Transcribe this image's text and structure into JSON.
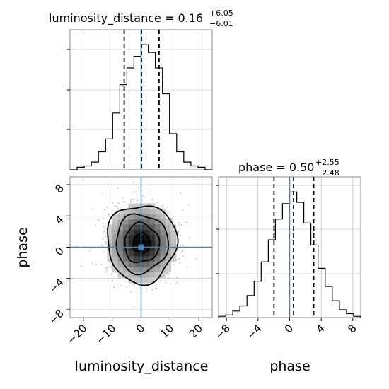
{
  "titles": {
    "luminosity_distance": {
      "name": "luminosity_distance",
      "median": "0.16",
      "plus": "+6.05",
      "minus": "−6.01"
    },
    "phase": {
      "name": "phase",
      "median": "0.50",
      "plus": "+2.55",
      "minus": "−2.48"
    }
  },
  "axes": {
    "x_bottom_left": {
      "label": "luminosity_distance",
      "ticks": [
        "−20",
        "−10",
        "0",
        "10",
        "20"
      ]
    },
    "x_bottom_right": {
      "label": "phase",
      "ticks": [
        "−8",
        "−4",
        "0",
        "4",
        "8"
      ]
    },
    "y_left": {
      "label": "phase",
      "ticks": [
        "−8",
        "−4",
        "0",
        "4",
        "8"
      ]
    }
  },
  "colors": {
    "truth": "#4682b4",
    "hist": "#000000",
    "grid": "#b0b0b0"
  },
  "chart_data": [
    {
      "type": "histogram",
      "panel": "luminosity_distance marginal",
      "xlim": [
        -24.6,
        24.6
      ],
      "bin_edges": [
        -24.6,
        -22.14,
        -19.68,
        -17.22,
        -14.76,
        -12.3,
        -9.84,
        -7.38,
        -4.92,
        -2.46,
        0,
        2.46,
        4.92,
        7.38,
        9.84,
        12.3,
        14.76,
        17.22,
        19.68,
        22.14,
        24.6
      ],
      "counts": [
        0,
        2,
        3,
        6,
        14,
        24,
        44,
        66,
        79,
        88,
        97,
        91,
        79,
        59,
        28,
        14,
        6,
        3,
        2,
        0
      ],
      "median": 0.16,
      "quantile_lines": [
        -5.85,
        0.16,
        6.21
      ],
      "truth": 0.0
    },
    {
      "type": "histogram",
      "panel": "phase marginal",
      "xlim": [
        -9.0,
        9.0
      ],
      "bin_edges": [
        -9.0,
        -8.1,
        -7.2,
        -6.3,
        -5.4,
        -4.5,
        -3.6,
        -2.7,
        -1.8,
        -0.9,
        0,
        0.9,
        1.8,
        2.7,
        3.6,
        4.5,
        5.4,
        6.3,
        7.2,
        8.1,
        9.0
      ],
      "counts": [
        1,
        2,
        5,
        9,
        17,
        28,
        43,
        60,
        76,
        88,
        97,
        89,
        73,
        56,
        38,
        24,
        13,
        6,
        3,
        1
      ],
      "median": 0.5,
      "quantile_lines": [
        -1.98,
        0.5,
        3.05
      ],
      "truth": 0.0
    },
    {
      "type": "heatmap",
      "panel": "phase vs luminosity_distance 2D density",
      "xlim": [
        -24.6,
        24.6
      ],
      "ylim": [
        -9.0,
        9.0
      ],
      "center": [
        0.16,
        0.5
      ],
      "sigma": [
        6.0,
        2.5
      ],
      "contour_levels_sigma": [
        0.5,
        1.0,
        1.5,
        2.0
      ],
      "truth": [
        0.0,
        0.0
      ]
    }
  ]
}
